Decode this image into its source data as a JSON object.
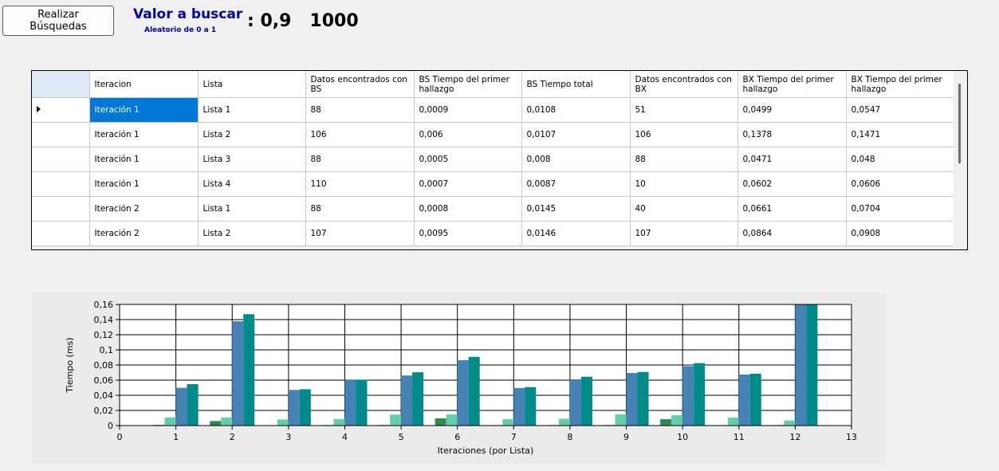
{
  "toolbar": {
    "search_button": "Realizar Búsquedas"
  },
  "header": {
    "title": "Valor a buscar",
    "subtitle": "Aleatorio de 0 a 1",
    "value_text": ": 0,9   1000"
  },
  "grid": {
    "columns": [
      "Iteracion",
      "Lista",
      "Datos encontrados con BS",
      "BS Tiempo del primer hallazgo",
      "BS Tiempo total",
      "Datos encontrados con BX",
      "BX Tiempo del primer hallazgo",
      "BX Tiempo del primer hallazgo"
    ],
    "selected_row": 0,
    "rows": [
      [
        "Iteración 1",
        "Lista 1",
        "88",
        "0,0009",
        "0,0108",
        "51",
        "0,0499",
        "0,0547"
      ],
      [
        "Iteración 1",
        "Lista 2",
        "106",
        "0,006",
        "0,0107",
        "106",
        "0,1378",
        "0,1471"
      ],
      [
        "Iteración 1",
        "Lista 3",
        "88",
        "0,0005",
        "0,008",
        "88",
        "0,0471",
        "0,048"
      ],
      [
        "Iteración 1",
        "Lista 4",
        "110",
        "0,0007",
        "0,0087",
        "10",
        "0,0602",
        "0,0606"
      ],
      [
        "Iteración 2",
        "Lista 1",
        "88",
        "0,0008",
        "0,0145",
        "40",
        "0,0661",
        "0,0704"
      ],
      [
        "Iteración 2",
        "Lista 2",
        "107",
        "0,0095",
        "0,0146",
        "107",
        "0,0864",
        "0,0908"
      ]
    ]
  },
  "chart_data": {
    "type": "bar",
    "xlabel": "Iteraciones (por Lista)",
    "ylabel": "Tiempo (ms)",
    "xlim": [
      0,
      13
    ],
    "ylim": [
      0,
      0.16
    ],
    "xticks": [
      "0",
      "1",
      "2",
      "3",
      "4",
      "5",
      "6",
      "7",
      "8",
      "9",
      "10",
      "11",
      "12",
      "13"
    ],
    "yticks": [
      "0",
      "0,02",
      "0,04",
      "0,06",
      "0,08",
      "0,1",
      "0,12",
      "0,14",
      "0,16"
    ],
    "grid": true,
    "categories": [
      1,
      2,
      3,
      4,
      5,
      6,
      7,
      8,
      9,
      10,
      11,
      12
    ],
    "series": [
      {
        "color": "#2e8b57",
        "values": [
          0.0009,
          0.006,
          0.0005,
          0.0007,
          0.0008,
          0.0095,
          0.0006,
          0.0007,
          0.0008,
          0.0085,
          0.0006,
          0.0007
        ]
      },
      {
        "color": "#66cdaa",
        "values": [
          0.0108,
          0.0107,
          0.008,
          0.0087,
          0.0145,
          0.0146,
          0.0085,
          0.009,
          0.0148,
          0.0138,
          0.0105,
          0.0068
        ]
      },
      {
        "color": "#4682b4",
        "values": [
          0.0499,
          0.1378,
          0.0471,
          0.0602,
          0.0661,
          0.0864,
          0.0496,
          0.0612,
          0.0695,
          0.0785,
          0.0675,
          0.16
        ]
      },
      {
        "color": "#008b8b",
        "values": [
          0.0547,
          0.1471,
          0.048,
          0.0606,
          0.0704,
          0.0908,
          0.0508,
          0.0645,
          0.0708,
          0.0825,
          0.0685,
          0.16
        ]
      }
    ]
  }
}
